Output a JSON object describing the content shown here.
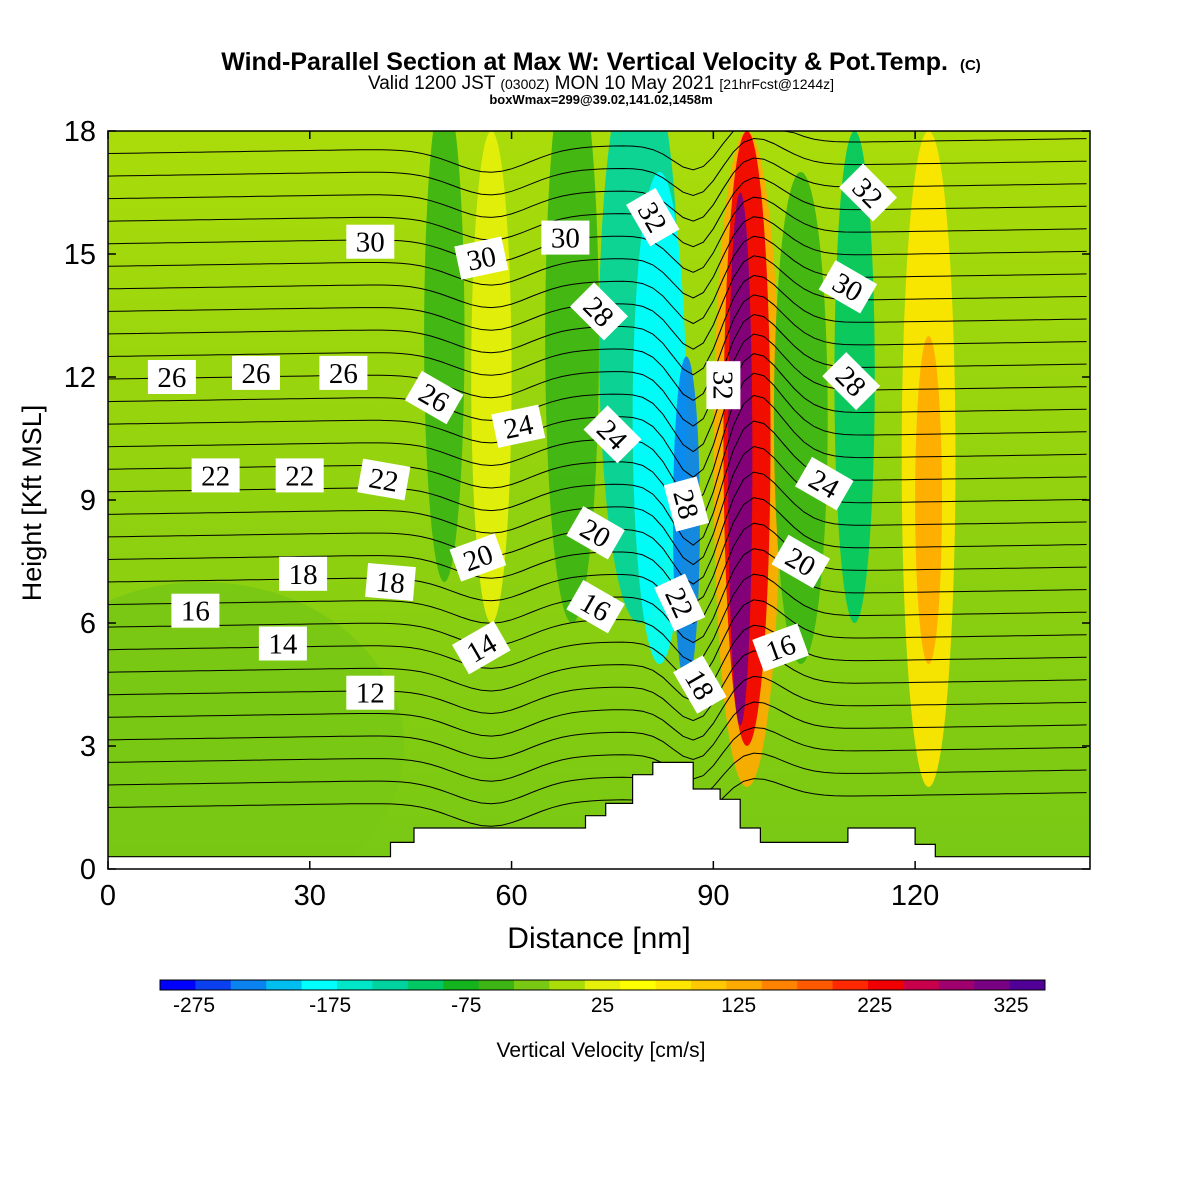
{
  "chart_data": {
    "type": "heatmap",
    "title": "Wind-Parallel Section at Max W: Vertical Velocity & Pot.Temp.",
    "title_mark": "(C)",
    "subtitle_valid": "Valid 1200 JST",
    "subtitle_utc": "(0300Z)",
    "subtitle_date": "MON 10 May 2021",
    "subtitle_fcst": "[21hrFcst@1244z]",
    "subtitle2": "boxWmax=299@39.02,141.02,1458m",
    "xlabel": "Distance [nm]",
    "ylabel": "Height [Kft MSL]",
    "xlim": [
      0,
      146
    ],
    "ylim": [
      0,
      18
    ],
    "x_ticks": [
      "0",
      "30",
      "60",
      "90",
      "120"
    ],
    "y_ticks": [
      "0",
      "3",
      "6",
      "9",
      "12",
      "15",
      "18"
    ],
    "colorbar": {
      "label": "Vertical Velocity [cm/s]",
      "tick_labels": [
        "-275",
        "-175",
        "-75",
        "25",
        "125",
        "225",
        "325"
      ],
      "tick_values": [
        -275,
        -175,
        -75,
        25,
        125,
        225,
        325
      ],
      "min": -300,
      "max": 350,
      "colors": [
        "#0000ff",
        "#0a40f0",
        "#0a82f0",
        "#00bff0",
        "#00ffff",
        "#00e6c8",
        "#00d2a0",
        "#00c864",
        "#14b41e",
        "#3cb414",
        "#78c814",
        "#aadc0a",
        "#e6f00a",
        "#ffff00",
        "#ffe600",
        "#ffc800",
        "#ffaa00",
        "#ff8200",
        "#ff5a00",
        "#ff2800",
        "#f00000",
        "#c8004b",
        "#a0006e",
        "#780082",
        "#500096"
      ]
    },
    "series": [
      {
        "name": "Vertical Velocity",
        "w_features_cm_s": [
          {
            "x": 95,
            "z": 10,
            "w": 320
          },
          {
            "x": 87,
            "z": 9,
            "w": -290
          },
          {
            "x": 80,
            "z": 14,
            "w": -180
          },
          {
            "x": 122,
            "z": 9,
            "w": 110
          },
          {
            "x": 57,
            "z": 12,
            "w": 30
          },
          {
            "x": 48,
            "z": 12,
            "w": -80
          },
          {
            "x": 110,
            "z": 12,
            "w": -100
          },
          {
            "x": 69,
            "z": 12,
            "w": -70
          },
          {
            "x": 20,
            "z": 4,
            "w": -40
          }
        ]
      },
      {
        "name": "Pot.Temp.",
        "contour_labels": [
          {
            "text": "30",
            "x": 39,
            "z": 15.3,
            "angle": 0
          },
          {
            "text": "30",
            "x": 55.5,
            "z": 14.9,
            "angle": -12
          },
          {
            "text": "30",
            "x": 68,
            "z": 15.4,
            "angle": 0
          },
          {
            "text": "32",
            "x": 81,
            "z": 15.9,
            "angle": 60
          },
          {
            "text": "32",
            "x": 113,
            "z": 16.5,
            "angle": 45
          },
          {
            "text": "30",
            "x": 110,
            "z": 14.2,
            "angle": 30
          },
          {
            "text": "28",
            "x": 73,
            "z": 13.6,
            "angle": 45
          },
          {
            "text": "26",
            "x": 9.5,
            "z": 12.0,
            "angle": 0
          },
          {
            "text": "26",
            "x": 22,
            "z": 12.1,
            "angle": 0
          },
          {
            "text": "26",
            "x": 35,
            "z": 12.1,
            "angle": 0
          },
          {
            "text": "26",
            "x": 48.5,
            "z": 11.5,
            "angle": 30
          },
          {
            "text": "24",
            "x": 61,
            "z": 10.8,
            "angle": -12
          },
          {
            "text": "24",
            "x": 75,
            "z": 10.6,
            "angle": 45
          },
          {
            "text": "32",
            "x": 91.5,
            "z": 11.8,
            "angle": 90
          },
          {
            "text": "28",
            "x": 110.5,
            "z": 11.9,
            "angle": 45
          },
          {
            "text": "24",
            "x": 106.5,
            "z": 9.4,
            "angle": 30
          },
          {
            "text": "22",
            "x": 16,
            "z": 9.6,
            "angle": 0
          },
          {
            "text": "22",
            "x": 28.5,
            "z": 9.6,
            "angle": 0
          },
          {
            "text": "22",
            "x": 41,
            "z": 9.5,
            "angle": 10
          },
          {
            "text": "28",
            "x": 86,
            "z": 8.9,
            "angle": 75
          },
          {
            "text": "20",
            "x": 72.5,
            "z": 8.2,
            "angle": 30
          },
          {
            "text": "20",
            "x": 55,
            "z": 7.6,
            "angle": -20
          },
          {
            "text": "20",
            "x": 103,
            "z": 7.5,
            "angle": 30
          },
          {
            "text": "18",
            "x": 29,
            "z": 7.2,
            "angle": 0
          },
          {
            "text": "18",
            "x": 42,
            "z": 7.0,
            "angle": 5
          },
          {
            "text": "16",
            "x": 13,
            "z": 6.3,
            "angle": 0
          },
          {
            "text": "22",
            "x": 85,
            "z": 6.5,
            "angle": 65
          },
          {
            "text": "16",
            "x": 72.5,
            "z": 6.4,
            "angle": 30
          },
          {
            "text": "16",
            "x": 100,
            "z": 5.4,
            "angle": -20
          },
          {
            "text": "14",
            "x": 26,
            "z": 5.5,
            "angle": 0
          },
          {
            "text": "14",
            "x": 55.5,
            "z": 5.4,
            "angle": -30
          },
          {
            "text": "18",
            "x": 88,
            "z": 4.5,
            "angle": 60
          },
          {
            "text": "12",
            "x": 39,
            "z": 4.3,
            "angle": 0
          }
        ]
      }
    ],
    "terrain_kft": [
      [
        0,
        0.3
      ],
      [
        42,
        0.3
      ],
      [
        42,
        0.65
      ],
      [
        45.5,
        0.65
      ],
      [
        45.5,
        1.0
      ],
      [
        71,
        1.0
      ],
      [
        71,
        1.3
      ],
      [
        74,
        1.3
      ],
      [
        74,
        1.6
      ],
      [
        78,
        1.6
      ],
      [
        78,
        2.3
      ],
      [
        81,
        2.3
      ],
      [
        81,
        2.6
      ],
      [
        87,
        2.6
      ],
      [
        87,
        1.95
      ],
      [
        91,
        1.95
      ],
      [
        91,
        1.7
      ],
      [
        94,
        1.7
      ],
      [
        94,
        1.0
      ],
      [
        97,
        1.0
      ],
      [
        97,
        0.65
      ],
      [
        110,
        0.65
      ],
      [
        110,
        1.0
      ],
      [
        120,
        1.0
      ],
      [
        120,
        0.6
      ],
      [
        123,
        0.6
      ],
      [
        123,
        0.3
      ],
      [
        146,
        0.3
      ]
    ]
  }
}
